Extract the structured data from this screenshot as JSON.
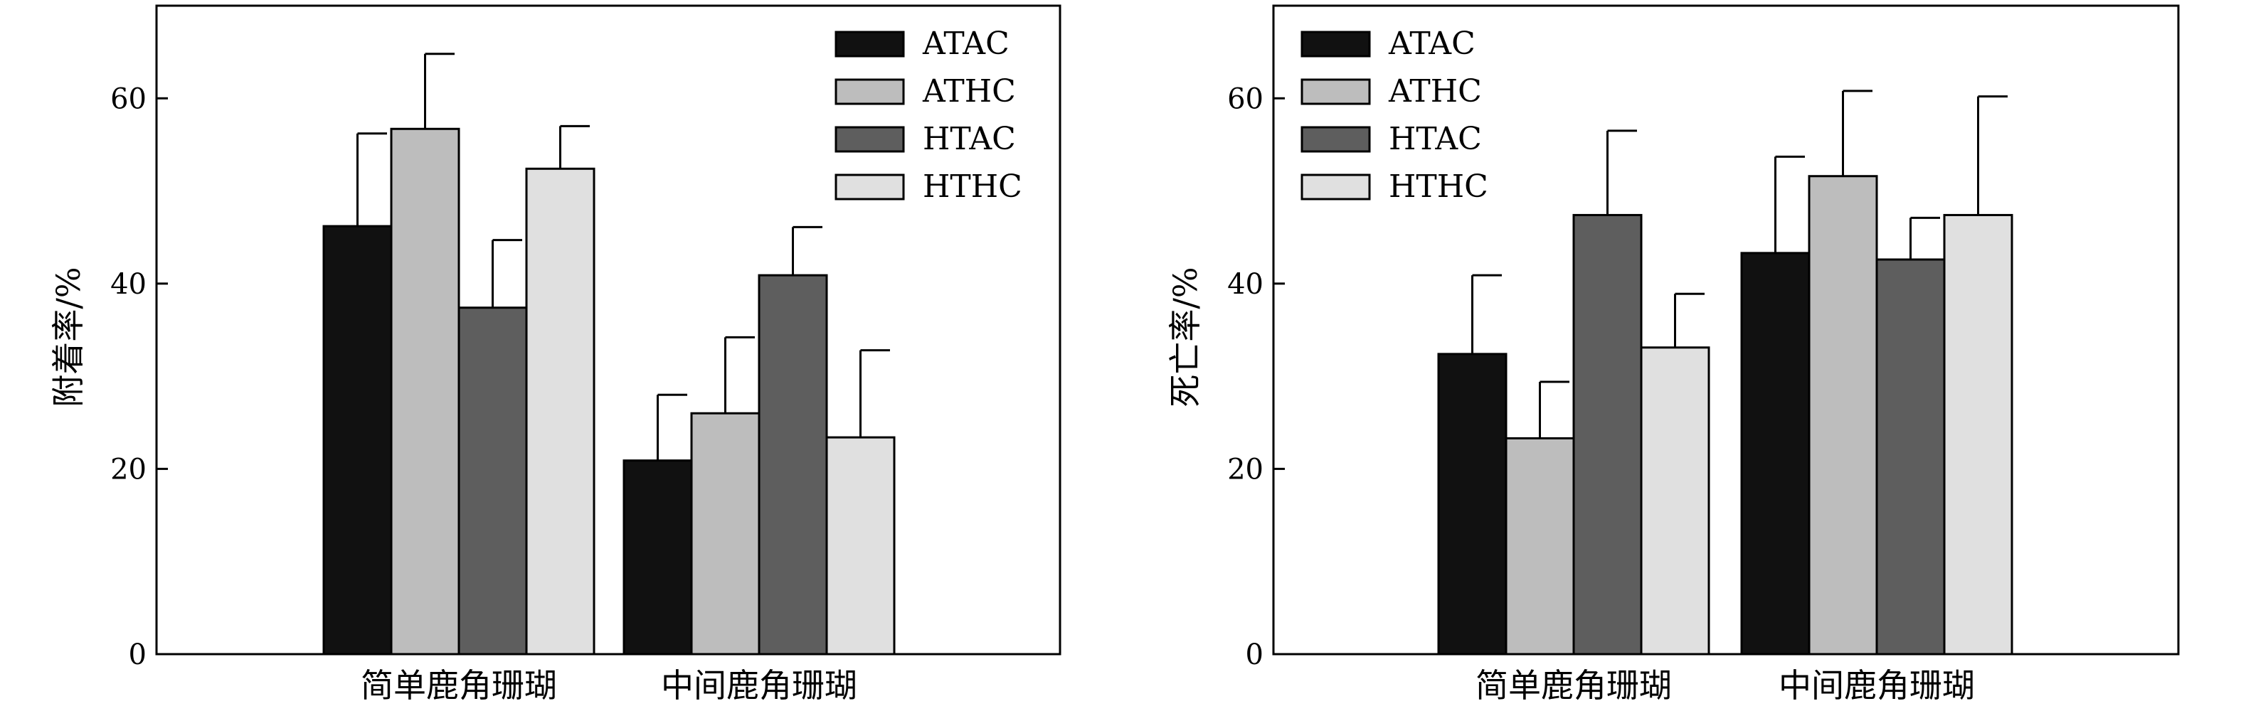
{
  "chart_data": [
    {
      "type": "bar",
      "ylabel": "附着率/%",
      "xlabel": "",
      "ylim": [
        0,
        70
      ],
      "yticks": [
        0,
        20,
        40,
        60
      ],
      "categories": [
        "简单鹿角珊瑚",
        "中间鹿角珊瑚"
      ],
      "legend_position": "top-right",
      "series": [
        {
          "name": "ATAC",
          "color": "#111111",
          "values": [
            46.2,
            20.9
          ],
          "errors": [
            10.0,
            7.1
          ]
        },
        {
          "name": "ATHC",
          "color": "#bdbdbd",
          "values": [
            56.7,
            26.0
          ],
          "errors": [
            8.1,
            8.2
          ]
        },
        {
          "name": "HTAC",
          "color": "#5e5e5e",
          "values": [
            37.4,
            40.9
          ],
          "errors": [
            7.3,
            5.2
          ]
        },
        {
          "name": "HTHC",
          "color": "#e0e0e0",
          "values": [
            52.4,
            23.4
          ],
          "errors": [
            4.6,
            9.4
          ]
        }
      ]
    },
    {
      "type": "bar",
      "ylabel": "死亡率/%",
      "xlabel": "",
      "ylim": [
        0,
        70
      ],
      "yticks": [
        0,
        20,
        40,
        60
      ],
      "categories": [
        "简单鹿角珊瑚",
        "中间鹿角珊瑚"
      ],
      "legend_position": "top-left",
      "series": [
        {
          "name": "ATAC",
          "color": "#111111",
          "values": [
            32.4,
            43.3
          ],
          "errors": [
            8.5,
            10.4
          ]
        },
        {
          "name": "ATHC",
          "color": "#bdbdbd",
          "values": [
            23.3,
            51.6
          ],
          "errors": [
            6.1,
            9.2
          ]
        },
        {
          "name": "HTAC",
          "color": "#5e5e5e",
          "values": [
            47.4,
            42.6
          ],
          "errors": [
            9.1,
            4.5
          ]
        },
        {
          "name": "HTHC",
          "color": "#e0e0e0",
          "values": [
            33.1,
            47.4
          ],
          "errors": [
            5.8,
            12.8
          ]
        }
      ]
    }
  ]
}
